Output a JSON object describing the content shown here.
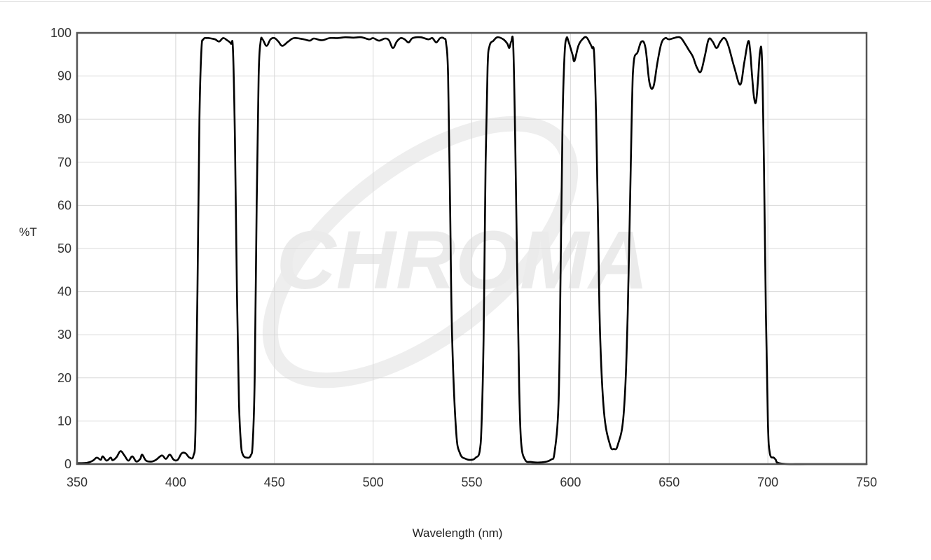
{
  "chart_data": {
    "type": "line",
    "xlabel": "Wavelength (nm)",
    "ylabel": "%T",
    "xlim": [
      350,
      750
    ],
    "ylim": [
      0,
      100
    ],
    "xticks": [
      350,
      400,
      450,
      500,
      550,
      600,
      650,
      700,
      750
    ],
    "yticks": [
      0,
      10,
      20,
      30,
      40,
      50,
      60,
      70,
      80,
      90,
      100
    ],
    "grid": true,
    "watermark": "CHROMA",
    "line_color": "#000000",
    "series": [
      {
        "points": [
          [
            350,
            0.2
          ],
          [
            355,
            0.3
          ],
          [
            358,
            0.8
          ],
          [
            360,
            1.5
          ],
          [
            362,
            1.0
          ],
          [
            363,
            1.8
          ],
          [
            365,
            0.8
          ],
          [
            367,
            1.5
          ],
          [
            368,
            0.9
          ],
          [
            370,
            1.6
          ],
          [
            372,
            3.0
          ],
          [
            374,
            2.0
          ],
          [
            376,
            0.8
          ],
          [
            378,
            1.8
          ],
          [
            380,
            0.6
          ],
          [
            382,
            1.2
          ],
          [
            383,
            2.2
          ],
          [
            385,
            0.8
          ],
          [
            388,
            0.6
          ],
          [
            390,
            1.0
          ],
          [
            393,
            2.0
          ],
          [
            395,
            1.2
          ],
          [
            397,
            2.2
          ],
          [
            399,
            1.0
          ],
          [
            401,
            1.0
          ],
          [
            403,
            2.5
          ],
          [
            405,
            2.5
          ],
          [
            407,
            1.5
          ],
          [
            409,
            2.0
          ],
          [
            410,
            8
          ],
          [
            411,
            40
          ],
          [
            412,
            80
          ],
          [
            413,
            96
          ],
          [
            414,
            98.5
          ],
          [
            416,
            98.8
          ],
          [
            418,
            98.7
          ],
          [
            420,
            98.5
          ],
          [
            422,
            98.0
          ],
          [
            424,
            98.8
          ],
          [
            426,
            98.3
          ],
          [
            428,
            97.5
          ],
          [
            429,
            96
          ],
          [
            430,
            75
          ],
          [
            431,
            40
          ],
          [
            432,
            15
          ],
          [
            433,
            5
          ],
          [
            434,
            2.2
          ],
          [
            436,
            1.5
          ],
          [
            438,
            2.0
          ],
          [
            439,
            5
          ],
          [
            440,
            20
          ],
          [
            441,
            60
          ],
          [
            442,
            90
          ],
          [
            443,
            98
          ],
          [
            444,
            98.5
          ],
          [
            446,
            97.0
          ],
          [
            448,
            98.5
          ],
          [
            450,
            98.8
          ],
          [
            452,
            98.0
          ],
          [
            454,
            97.0
          ],
          [
            457,
            98.0
          ],
          [
            460,
            98.8
          ],
          [
            465,
            98.5
          ],
          [
            468,
            98.2
          ],
          [
            470,
            98.7
          ],
          [
            474,
            98.3
          ],
          [
            478,
            98.8
          ],
          [
            482,
            98.8
          ],
          [
            486,
            99.0
          ],
          [
            490,
            98.9
          ],
          [
            494,
            99.0
          ],
          [
            498,
            98.5
          ],
          [
            500,
            98.8
          ],
          [
            503,
            98.2
          ],
          [
            506,
            98.7
          ],
          [
            508,
            98.3
          ],
          [
            510,
            96.5
          ],
          [
            512,
            98.0
          ],
          [
            514,
            98.8
          ],
          [
            516,
            98.5
          ],
          [
            518,
            97.8
          ],
          [
            520,
            98.8
          ],
          [
            524,
            99.0
          ],
          [
            528,
            98.5
          ],
          [
            530,
            98.8
          ],
          [
            532,
            97.8
          ],
          [
            534,
            98.8
          ],
          [
            536,
            98.7
          ],
          [
            537,
            97.5
          ],
          [
            538,
            90
          ],
          [
            539,
            60
          ],
          [
            540,
            30
          ],
          [
            542,
            8
          ],
          [
            544,
            2.5
          ],
          [
            547,
            1.2
          ],
          [
            550,
            1.0
          ],
          [
            552,
            1.5
          ],
          [
            554,
            3.0
          ],
          [
            555,
            10
          ],
          [
            556,
            30
          ],
          [
            557,
            70
          ],
          [
            558,
            92
          ],
          [
            559,
            97
          ],
          [
            561,
            98.2
          ],
          [
            563,
            99.0
          ],
          [
            566,
            98.5
          ],
          [
            568,
            97.5
          ],
          [
            569,
            96.5
          ],
          [
            570,
            98.0
          ],
          [
            571,
            97.0
          ],
          [
            572,
            75
          ],
          [
            573,
            45
          ],
          [
            574,
            18
          ],
          [
            575,
            5
          ],
          [
            577,
            1.0
          ],
          [
            580,
            0.5
          ],
          [
            585,
            0.4
          ],
          [
            590,
            1.0
          ],
          [
            592,
            3.0
          ],
          [
            594,
            15
          ],
          [
            595,
            45
          ],
          [
            596,
            80
          ],
          [
            597,
            95
          ],
          [
            598,
            98.8
          ],
          [
            599,
            98.0
          ],
          [
            601,
            95.0
          ],
          [
            602,
            93.5
          ],
          [
            604,
            97.0
          ],
          [
            606,
            98.5
          ],
          [
            608,
            99.0
          ],
          [
            610,
            97.5
          ],
          [
            611,
            96.5
          ],
          [
            612,
            95
          ],
          [
            613,
            80
          ],
          [
            614,
            55
          ],
          [
            615,
            30
          ],
          [
            617,
            12
          ],
          [
            620,
            4.5
          ],
          [
            622,
            3.5
          ],
          [
            624,
            4.5
          ],
          [
            627,
            12
          ],
          [
            629,
            35
          ],
          [
            631,
            80
          ],
          [
            632,
            93
          ],
          [
            634,
            95.5
          ],
          [
            636,
            98.0
          ],
          [
            638,
            96.5
          ],
          [
            640,
            88.5
          ],
          [
            642,
            87.5
          ],
          [
            644,
            93
          ],
          [
            646,
            97.5
          ],
          [
            648,
            98.8
          ],
          [
            650,
            98.5
          ],
          [
            654,
            99.0
          ],
          [
            656,
            98.8
          ],
          [
            658,
            97.5
          ],
          [
            660,
            96.0
          ],
          [
            662,
            94.5
          ],
          [
            664,
            92.0
          ],
          [
            666,
            91.0
          ],
          [
            668,
            94.5
          ],
          [
            670,
            98.5
          ],
          [
            672,
            98.0
          ],
          [
            674,
            96.5
          ],
          [
            676,
            98.0
          ],
          [
            678,
            98.8
          ],
          [
            680,
            97.0
          ],
          [
            683,
            92.0
          ],
          [
            686,
            88.0
          ],
          [
            688,
            93
          ],
          [
            690,
            98.0
          ],
          [
            691,
            96
          ],
          [
            692,
            90
          ],
          [
            693,
            85.0
          ],
          [
            694,
            84.0
          ],
          [
            695,
            89
          ],
          [
            696,
            95.5
          ],
          [
            697,
            94
          ],
          [
            698,
            70
          ],
          [
            699,
            35
          ],
          [
            700,
            10
          ],
          [
            701,
            2.5
          ],
          [
            703,
            1.5
          ],
          [
            704,
            1.0
          ],
          [
            705,
            0.3
          ],
          [
            710,
            0.0
          ],
          [
            720,
            0.0
          ],
          [
            750,
            0.0
          ]
        ]
      }
    ]
  }
}
